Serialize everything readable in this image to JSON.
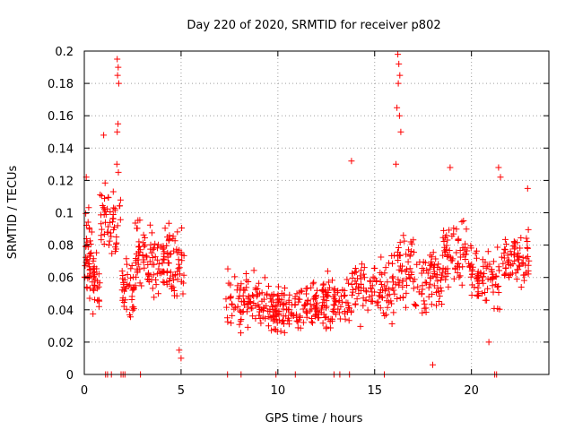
{
  "chart_data": {
    "type": "scatter",
    "title": "Day 220 of 2020, SRMTID for receiver p802",
    "xlabel": "GPS time / hours",
    "ylabel": "SRMTID / TECUs",
    "xlim": [
      0,
      24
    ],
    "ylim": [
      0,
      0.2
    ],
    "x_ticks": [
      0,
      5,
      10,
      15,
      20
    ],
    "x_tick_labels": [
      "0",
      "5",
      "10",
      "15",
      "20"
    ],
    "y_ticks": [
      0,
      0.02,
      0.04,
      0.06,
      0.08,
      0.1,
      0.12,
      0.14,
      0.16,
      0.18,
      0.2
    ],
    "y_tick_labels": [
      "0",
      "0.02",
      "0.04",
      "0.06",
      "0.08",
      "0.1",
      "0.12",
      "0.14",
      "0.16",
      "0.18",
      "0.2"
    ],
    "grid": true,
    "marker": "+",
    "color": "#ff0000",
    "zero_markers_x": [
      1.1,
      1.2,
      1.4,
      1.9,
      2.0,
      2.1,
      2.9,
      7.4,
      8.1,
      9.9,
      10.9,
      12.9,
      13.2,
      13.7,
      15.5,
      21.2,
      21.3
    ],
    "clusters": [
      {
        "x_range": [
          0.0,
          0.4
        ],
        "mean": 0.075,
        "spread": 0.022,
        "count": 40
      },
      {
        "x_range": [
          0.4,
          0.8
        ],
        "mean": 0.06,
        "spread": 0.018,
        "count": 30
      },
      {
        "x_range": [
          0.8,
          1.4
        ],
        "mean": 0.1,
        "spread": 0.018,
        "count": 30
      },
      {
        "x_range": [
          1.4,
          1.9
        ],
        "mean": 0.09,
        "spread": 0.02,
        "count": 22
      },
      {
        "x_range": [
          1.9,
          2.6
        ],
        "mean": 0.055,
        "spread": 0.016,
        "count": 40
      },
      {
        "x_range": [
          2.6,
          3.3
        ],
        "mean": 0.075,
        "spread": 0.016,
        "count": 40
      },
      {
        "x_range": [
          3.3,
          4.5
        ],
        "mean": 0.07,
        "spread": 0.016,
        "count": 70
      },
      {
        "x_range": [
          4.5,
          5.2
        ],
        "mean": 0.065,
        "spread": 0.02,
        "count": 35
      },
      {
        "x_range": [
          7.3,
          8.3
        ],
        "mean": 0.045,
        "spread": 0.014,
        "count": 40
      },
      {
        "x_range": [
          8.3,
          9.6
        ],
        "mean": 0.045,
        "spread": 0.014,
        "count": 60
      },
      {
        "x_range": [
          9.6,
          11.0
        ],
        "mean": 0.04,
        "spread": 0.012,
        "count": 80
      },
      {
        "x_range": [
          11.0,
          12.5
        ],
        "mean": 0.043,
        "spread": 0.012,
        "count": 80
      },
      {
        "x_range": [
          12.5,
          13.8
        ],
        "mean": 0.045,
        "spread": 0.013,
        "count": 60
      },
      {
        "x_range": [
          13.8,
          15.2
        ],
        "mean": 0.055,
        "spread": 0.016,
        "count": 60
      },
      {
        "x_range": [
          15.2,
          16.0
        ],
        "mean": 0.052,
        "spread": 0.016,
        "count": 40
      },
      {
        "x_range": [
          16.0,
          17.0
        ],
        "mean": 0.065,
        "spread": 0.016,
        "count": 50
      },
      {
        "x_range": [
          17.0,
          18.5
        ],
        "mean": 0.06,
        "spread": 0.017,
        "count": 70
      },
      {
        "x_range": [
          18.5,
          20.0
        ],
        "mean": 0.075,
        "spread": 0.017,
        "count": 70
      },
      {
        "x_range": [
          20.0,
          21.5
        ],
        "mean": 0.06,
        "spread": 0.015,
        "count": 70
      },
      {
        "x_range": [
          21.5,
          23.0
        ],
        "mean": 0.072,
        "spread": 0.015,
        "count": 70
      }
    ],
    "peaks": [
      {
        "x": 1.7,
        "y": 0.195
      },
      {
        "x": 1.75,
        "y": 0.19
      },
      {
        "x": 1.72,
        "y": 0.185
      },
      {
        "x": 1.78,
        "y": 0.18
      },
      {
        "x": 1.74,
        "y": 0.155
      },
      {
        "x": 1.7,
        "y": 0.15
      },
      {
        "x": 1.68,
        "y": 0.13
      },
      {
        "x": 1.76,
        "y": 0.125
      },
      {
        "x": 16.2,
        "y": 0.198
      },
      {
        "x": 16.25,
        "y": 0.192
      },
      {
        "x": 16.3,
        "y": 0.185
      },
      {
        "x": 16.22,
        "y": 0.18
      },
      {
        "x": 16.15,
        "y": 0.165
      },
      {
        "x": 16.28,
        "y": 0.16
      },
      {
        "x": 16.35,
        "y": 0.15
      },
      {
        "x": 16.1,
        "y": 0.13
      },
      {
        "x": 13.8,
        "y": 0.132
      },
      {
        "x": 1.0,
        "y": 0.148
      },
      {
        "x": 0.1,
        "y": 0.122
      },
      {
        "x": 18.9,
        "y": 0.128
      },
      {
        "x": 21.4,
        "y": 0.128
      },
      {
        "x": 21.5,
        "y": 0.122
      },
      {
        "x": 22.9,
        "y": 0.115
      },
      {
        "x": 4.9,
        "y": 0.015
      },
      {
        "x": 5.0,
        "y": 0.01
      },
      {
        "x": 18.0,
        "y": 0.006
      },
      {
        "x": 20.9,
        "y": 0.02
      }
    ]
  }
}
